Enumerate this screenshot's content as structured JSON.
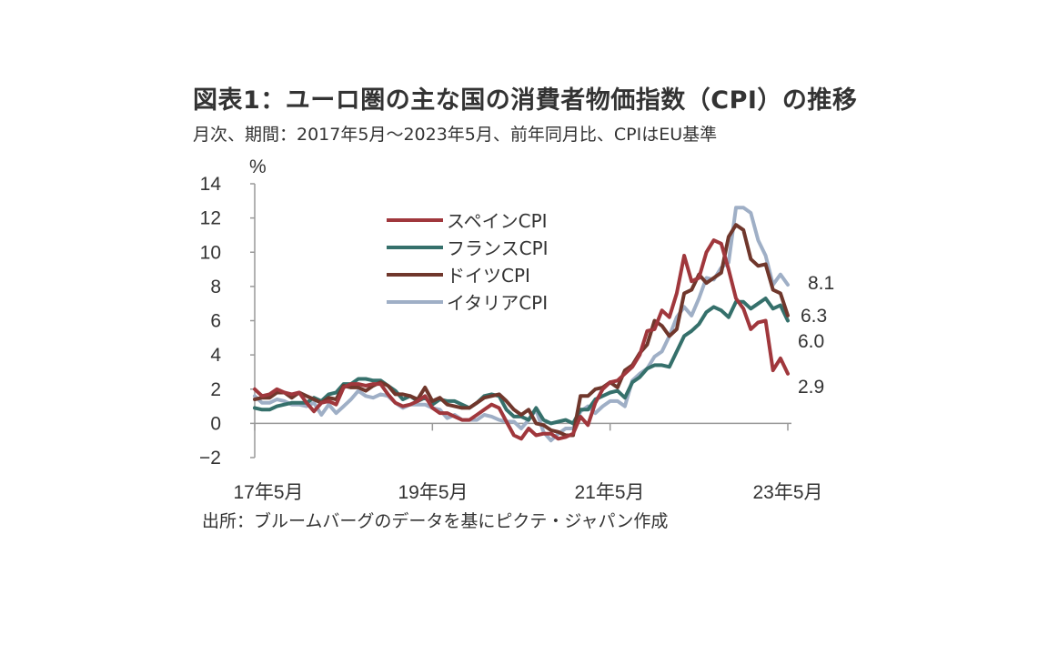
{
  "title": "図表1：ユーロ圏の主な国の消費者物価指数（CPI）の推移",
  "subtitle": "月次、期間：2017年5月～2023年5月、前年同月比、CPIはEU基準",
  "source": "出所：ブルームバーグのデータを基にピクテ・ジャパン作成",
  "chart_data": {
    "type": "line",
    "ylabel": "%",
    "ylim": [
      -2,
      14
    ],
    "yticks": [
      "14",
      "12",
      "10",
      "8",
      "6",
      "4",
      "2",
      "0",
      "−2"
    ],
    "xticks": [
      "17年5月",
      "19年5月",
      "21年5月",
      "23年5月"
    ],
    "x": [
      "2017-05",
      "2017-06",
      "2017-07",
      "2017-08",
      "2017-09",
      "2017-10",
      "2017-11",
      "2017-12",
      "2018-01",
      "2018-02",
      "2018-03",
      "2018-04",
      "2018-05",
      "2018-06",
      "2018-07",
      "2018-08",
      "2018-09",
      "2018-10",
      "2018-11",
      "2018-12",
      "2019-01",
      "2019-02",
      "2019-03",
      "2019-04",
      "2019-05",
      "2019-06",
      "2019-07",
      "2019-08",
      "2019-09",
      "2019-10",
      "2019-11",
      "2019-12",
      "2020-01",
      "2020-02",
      "2020-03",
      "2020-04",
      "2020-05",
      "2020-06",
      "2020-07",
      "2020-08",
      "2020-09",
      "2020-10",
      "2020-11",
      "2020-12",
      "2021-01",
      "2021-02",
      "2021-03",
      "2021-04",
      "2021-05",
      "2021-06",
      "2021-07",
      "2021-08",
      "2021-09",
      "2021-10",
      "2021-11",
      "2021-12",
      "2022-01",
      "2022-02",
      "2022-03",
      "2022-04",
      "2022-05",
      "2022-06",
      "2022-07",
      "2022-08",
      "2022-09",
      "2022-10",
      "2022-11",
      "2022-12",
      "2023-01",
      "2023-02",
      "2023-03",
      "2023-04",
      "2023-05"
    ],
    "series": [
      {
        "name": "スペインCPI",
        "color": "#a0373c",
        "end_label": "2.9",
        "values": [
          2.0,
          1.6,
          1.7,
          2.0,
          1.8,
          1.7,
          1.8,
          1.2,
          0.7,
          1.2,
          1.3,
          1.1,
          2.1,
          2.3,
          2.3,
          2.2,
          2.3,
          2.3,
          1.7,
          1.2,
          1.0,
          1.1,
          1.3,
          1.6,
          0.9,
          0.6,
          0.6,
          0.4,
          0.2,
          0.2,
          0.5,
          0.8,
          1.1,
          0.9,
          0.1,
          -0.7,
          -0.9,
          -0.3,
          -0.7,
          -0.6,
          -0.6,
          -0.9,
          -0.8,
          -0.6,
          0.4,
          -0.1,
          1.2,
          2.0,
          2.4,
          2.5,
          2.9,
          3.3,
          4.0,
          5.4,
          5.5,
          6.6,
          6.2,
          7.6,
          9.8,
          8.3,
          8.5,
          10.0,
          10.7,
          10.5,
          9.0,
          7.3,
          6.7,
          5.5,
          5.9,
          6.0,
          3.1,
          3.8,
          2.9
        ]
      },
      {
        "name": "フランスCPI",
        "color": "#35706b",
        "end_label": "6.0",
        "values": [
          0.9,
          0.8,
          0.8,
          1.0,
          1.1,
          1.2,
          1.2,
          1.2,
          1.5,
          1.3,
          1.7,
          1.8,
          2.3,
          2.3,
          2.6,
          2.6,
          2.5,
          2.5,
          2.2,
          1.9,
          1.4,
          1.6,
          1.3,
          1.5,
          1.1,
          1.4,
          1.3,
          1.3,
          1.1,
          0.9,
          1.2,
          1.6,
          1.7,
          1.6,
          0.8,
          0.4,
          0.4,
          0.2,
          0.9,
          0.2,
          0.0,
          0.1,
          0.2,
          0.0,
          0.8,
          0.8,
          1.4,
          1.6,
          1.8,
          1.9,
          1.5,
          2.4,
          2.7,
          3.2,
          3.4,
          3.4,
          3.3,
          4.2,
          5.1,
          5.4,
          5.8,
          6.5,
          6.8,
          6.6,
          6.2,
          7.1,
          7.1,
          6.7,
          7.0,
          7.3,
          6.7,
          6.9,
          6.0
        ]
      },
      {
        "name": "ドイツCPI",
        "color": "#70372c",
        "end_label": "6.3",
        "values": [
          1.4,
          1.5,
          1.5,
          1.8,
          1.8,
          1.5,
          1.8,
          1.6,
          1.4,
          1.2,
          1.5,
          1.4,
          2.2,
          2.1,
          2.1,
          1.9,
          2.2,
          2.4,
          2.2,
          1.7,
          1.7,
          1.6,
          1.4,
          2.1,
          1.3,
          1.5,
          1.1,
          1.0,
          0.9,
          0.9,
          1.2,
          1.5,
          1.6,
          1.7,
          1.3,
          0.8,
          0.5,
          0.8,
          0.0,
          -0.1,
          -0.4,
          -0.5,
          -0.7,
          -0.7,
          1.6,
          1.6,
          2.0,
          2.1,
          2.4,
          2.1,
          3.1,
          3.4,
          4.1,
          4.6,
          6.0,
          5.7,
          5.1,
          5.5,
          7.6,
          7.8,
          8.7,
          8.2,
          8.5,
          8.8,
          10.9,
          11.6,
          11.3,
          9.6,
          9.2,
          9.3,
          7.8,
          7.6,
          6.3
        ]
      },
      {
        "name": "イタリアCPI",
        "color": "#9fafc6",
        "end_label": "8.1",
        "values": [
          1.6,
          1.2,
          1.2,
          1.4,
          1.3,
          1.1,
          1.1,
          1.0,
          1.2,
          0.5,
          1.1,
          0.6,
          1.0,
          1.4,
          1.9,
          1.6,
          1.5,
          1.7,
          1.6,
          1.2,
          0.9,
          1.1,
          1.1,
          1.1,
          0.9,
          0.8,
          0.3,
          0.5,
          0.2,
          0.2,
          0.2,
          0.5,
          0.4,
          0.2,
          0.1,
          0.1,
          -0.3,
          0.2,
          0.8,
          -0.5,
          -1.0,
          -0.6,
          -0.3,
          -0.3,
          0.7,
          1.0,
          0.6,
          1.0,
          1.3,
          1.3,
          1.0,
          2.5,
          2.9,
          3.2,
          3.9,
          4.2,
          5.1,
          6.2,
          6.8,
          6.3,
          7.3,
          8.5,
          8.4,
          9.1,
          9.4,
          12.6,
          12.6,
          12.3,
          10.7,
          9.8,
          8.1,
          8.7,
          8.1
        ]
      }
    ],
    "grid": false,
    "legend_position": "top-left (inside plot)"
  }
}
